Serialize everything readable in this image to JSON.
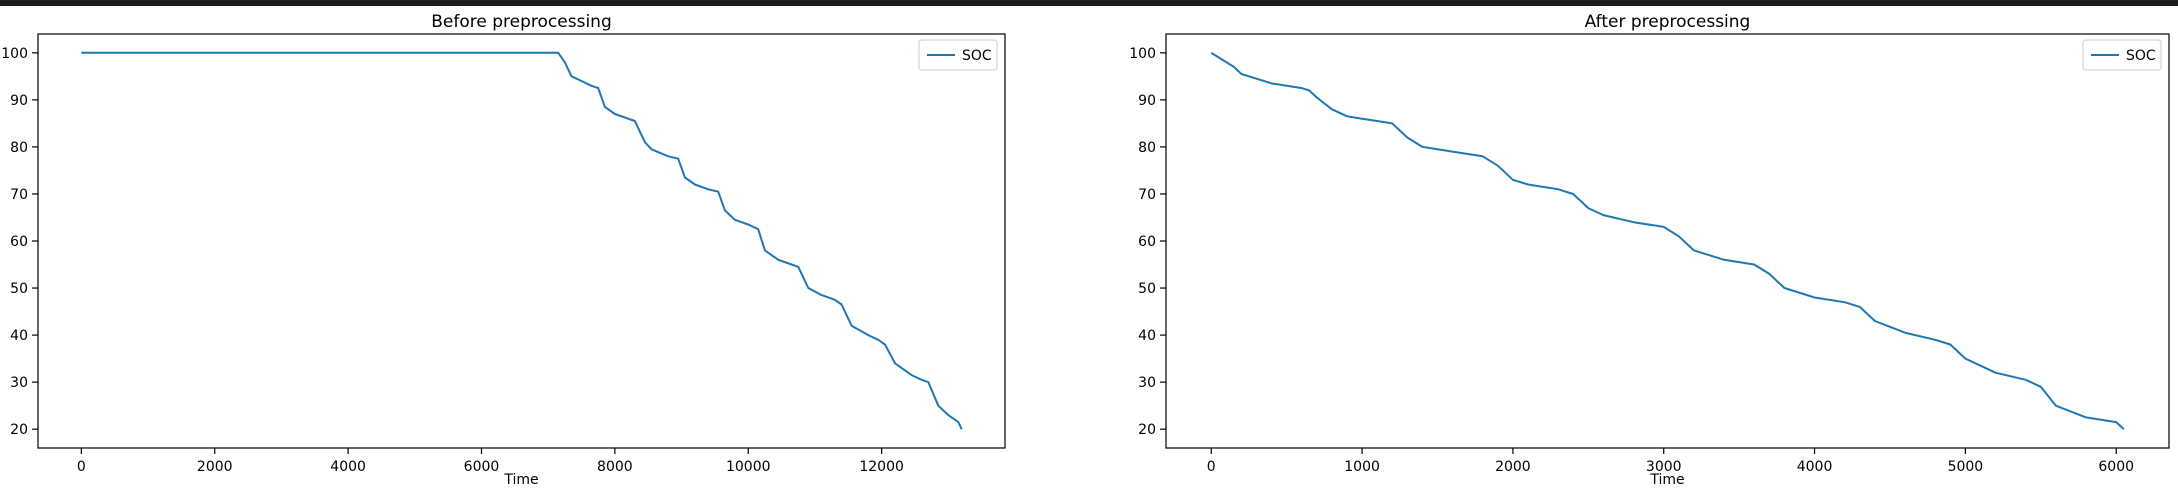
{
  "chart_data": [
    {
      "type": "line",
      "title": "Before preprocessing",
      "xlabel": "Time",
      "ylabel": "",
      "xlim": [
        -650,
        13850
      ],
      "ylim": [
        16,
        104
      ],
      "xticks": [
        0,
        2000,
        4000,
        6000,
        8000,
        10000,
        12000
      ],
      "yticks": [
        20,
        30,
        40,
        50,
        60,
        70,
        80,
        90,
        100
      ],
      "legend": "top-right",
      "grid": false,
      "series": [
        {
          "name": "SOC",
          "color": "#1f77b4",
          "x": [
            0,
            7150,
            7250,
            7350,
            7500,
            7650,
            7750,
            7850,
            8000,
            8200,
            8300,
            8450,
            8550,
            8800,
            8950,
            9050,
            9200,
            9400,
            9550,
            9650,
            9800,
            10000,
            10150,
            10250,
            10450,
            10650,
            10750,
            10900,
            11100,
            11300,
            11400,
            11550,
            11800,
            11950,
            12050,
            12200,
            12450,
            12600,
            12700,
            12850,
            13000,
            13150,
            13200
          ],
          "y": [
            100,
            100,
            98,
            95,
            94,
            93,
            92.5,
            88.5,
            87,
            86,
            85.5,
            81,
            79.5,
            78,
            77.5,
            73.5,
            72,
            71,
            70.5,
            66.5,
            64.5,
            63.5,
            62.5,
            58,
            56,
            55,
            54.5,
            50,
            48.5,
            47.5,
            46.5,
            42,
            40,
            39,
            38,
            34,
            31.5,
            30.5,
            30,
            25,
            23,
            21.5,
            20
          ]
        }
      ]
    },
    {
      "type": "line",
      "title": "After preprocessing",
      "xlabel": "Time",
      "ylabel": "",
      "xlim": [
        -300,
        6350
      ],
      "ylim": [
        16,
        104
      ],
      "xticks": [
        0,
        1000,
        2000,
        3000,
        4000,
        5000,
        6000
      ],
      "yticks": [
        20,
        30,
        40,
        50,
        60,
        70,
        80,
        90,
        100
      ],
      "legend": "top-right",
      "grid": false,
      "series": [
        {
          "name": "SOC",
          "color": "#1f77b4",
          "x": [
            0,
            50,
            100,
            150,
            200,
            300,
            400,
            500,
            600,
            650,
            700,
            800,
            900,
            1000,
            1100,
            1200,
            1300,
            1400,
            1500,
            1700,
            1800,
            1900,
            2000,
            2100,
            2300,
            2400,
            2500,
            2600,
            2800,
            3000,
            3100,
            3200,
            3400,
            3600,
            3700,
            3800,
            4000,
            4200,
            4300,
            4400,
            4600,
            4800,
            4900,
            5000,
            5200,
            5400,
            5500,
            5600,
            5800,
            6000,
            6050
          ],
          "y": [
            100,
            99,
            98,
            97,
            95.5,
            94.5,
            93.5,
            93,
            92.5,
            92,
            90.5,
            88,
            86.5,
            86,
            85.5,
            85,
            82,
            80,
            79.5,
            78.5,
            78,
            76,
            73,
            72,
            71,
            70,
            67,
            65.5,
            64,
            63,
            61,
            58,
            56,
            55,
            53,
            50,
            48,
            47,
            46,
            43,
            40.5,
            39,
            38,
            35,
            32,
            30.5,
            29,
            25,
            22.5,
            21.5,
            20
          ]
        }
      ]
    }
  ]
}
